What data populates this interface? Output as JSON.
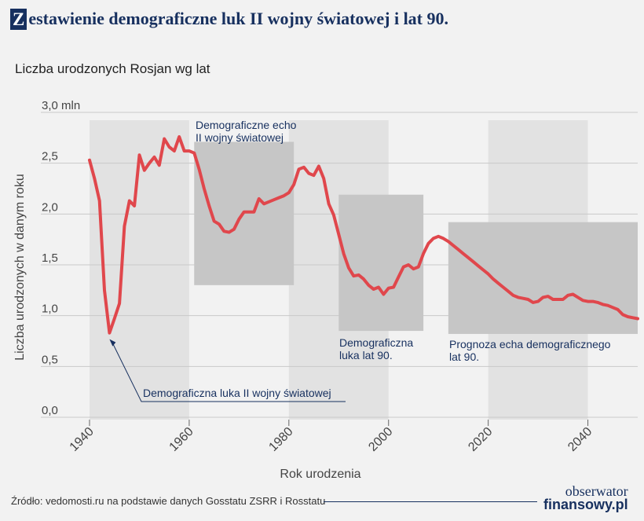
{
  "header": {
    "title_initial": "Z",
    "title_rest": "estawienie demograficzne luk II wojny światowej i lat 90.",
    "subtitle": "Liczba urodzonych Rosjan wg lat"
  },
  "footer": {
    "source": "Źródło: vedomosti.ru na podstawie danych Gosstatu ZSRR i Rosstatu",
    "logo_top": "obserwator",
    "logo_bottom": "finansowy.pl"
  },
  "colors": {
    "line": "#e0474c",
    "box": "#c6c6c6",
    "band": "#e2e2e2",
    "brand": "#17305f",
    "background": "#f2f2f2"
  },
  "chart_data": {
    "type": "line",
    "xlabel": "Rok urodzenia",
    "ylabel": "Liczba urodzonych w danym roku",
    "xlim": [
      1940,
      2050
    ],
    "ylim": [
      0,
      3.0
    ],
    "x_ticks": [
      1940,
      1960,
      1980,
      2000,
      2020,
      2040
    ],
    "y_ticks": [
      {
        "value": 0,
        "label": "0,0"
      },
      {
        "value": 0.5,
        "label": "0,5"
      },
      {
        "value": 1.0,
        "label": "1,0"
      },
      {
        "value": 1.5,
        "label": "1,5"
      },
      {
        "value": 2.0,
        "label": "2,0"
      },
      {
        "value": 2.5,
        "label": "2,5"
      },
      {
        "value": 3.0,
        "label": "3,0 mln"
      }
    ],
    "grid": "horizontal",
    "shaded_decades": [
      [
        1940,
        1960
      ],
      [
        1980,
        2000
      ],
      [
        2020,
        2040
      ]
    ],
    "series": [
      {
        "x": [
          1940,
          1941,
          1942,
          1943,
          1944,
          1945,
          1946,
          1947,
          1948,
          1949,
          1950,
          1951,
          1952,
          1953,
          1954,
          1955,
          1956,
          1957,
          1958,
          1959,
          1960,
          1961,
          1962,
          1963,
          1964,
          1965,
          1966,
          1967,
          1968,
          1969,
          1970,
          1971,
          1972,
          1973,
          1974,
          1975,
          1976,
          1977,
          1978,
          1979,
          1980,
          1981,
          1982,
          1983,
          1984,
          1985,
          1986,
          1987,
          1988,
          1989,
          1990,
          1991,
          1992,
          1993,
          1994,
          1995,
          1996,
          1997,
          1998,
          1999,
          2000,
          2001,
          2002,
          2003,
          2004,
          2005,
          2006,
          2007,
          2008,
          2009,
          2010,
          2011,
          2012,
          2013,
          2014,
          2015,
          2016,
          2017,
          2018,
          2019,
          2020,
          2021,
          2022,
          2023,
          2024,
          2025,
          2026,
          2027,
          2028,
          2029,
          2030,
          2031,
          2032,
          2033,
          2034,
          2035,
          2036,
          2037,
          2038,
          2039,
          2040,
          2041,
          2042,
          2043,
          2044,
          2045,
          2046,
          2047,
          2048,
          2049,
          2050
        ],
        "values": [
          2.53,
          2.35,
          2.13,
          1.25,
          0.83,
          0.97,
          1.12,
          1.88,
          2.13,
          2.08,
          2.58,
          2.43,
          2.5,
          2.56,
          2.48,
          2.74,
          2.66,
          2.62,
          2.76,
          2.62,
          2.62,
          2.6,
          2.44,
          2.25,
          2.08,
          1.93,
          1.9,
          1.83,
          1.82,
          1.85,
          1.95,
          2.02,
          2.02,
          2.02,
          2.15,
          2.1,
          2.12,
          2.14,
          2.16,
          2.18,
          2.21,
          2.29,
          2.44,
          2.46,
          2.4,
          2.38,
          2.47,
          2.35,
          2.1,
          1.99,
          1.8,
          1.61,
          1.47,
          1.39,
          1.4,
          1.36,
          1.3,
          1.26,
          1.28,
          1.21,
          1.27,
          1.28,
          1.38,
          1.48,
          1.5,
          1.46,
          1.48,
          1.61,
          1.71,
          1.76,
          1.78,
          1.76,
          1.73,
          1.69,
          1.65,
          1.61,
          1.57,
          1.53,
          1.49,
          1.45,
          1.41,
          1.36,
          1.32,
          1.28,
          1.24,
          1.2,
          1.18,
          1.17,
          1.16,
          1.13,
          1.14,
          1.18,
          1.19,
          1.16,
          1.16,
          1.16,
          1.2,
          1.21,
          1.18,
          1.15,
          1.14,
          1.14,
          1.13,
          1.11,
          1.1,
          1.08,
          1.06,
          1.01,
          0.99,
          0.98,
          0.97
        ]
      }
    ],
    "annotations": [
      {
        "lines": [
          "Demograficzne echo",
          "II wojny światowej"
        ],
        "box_x": [
          1961,
          1981
        ],
        "box_y": [
          1.3,
          2.71
        ]
      },
      {
        "lines": [
          "Demograficzna",
          "luka lat 90."
        ],
        "box_x": [
          1990,
          2007
        ],
        "box_y": [
          0.85,
          2.19
        ]
      },
      {
        "lines": [
          "Prognoza echa demograficznego",
          "lat 90."
        ],
        "box_x": [
          2012,
          2050
        ],
        "box_y": [
          0.82,
          1.92
        ]
      },
      {
        "lines": [
          "Demograficzna luka II wojny światowej"
        ],
        "target_x": 1944,
        "target_y": 0.83
      }
    ]
  }
}
